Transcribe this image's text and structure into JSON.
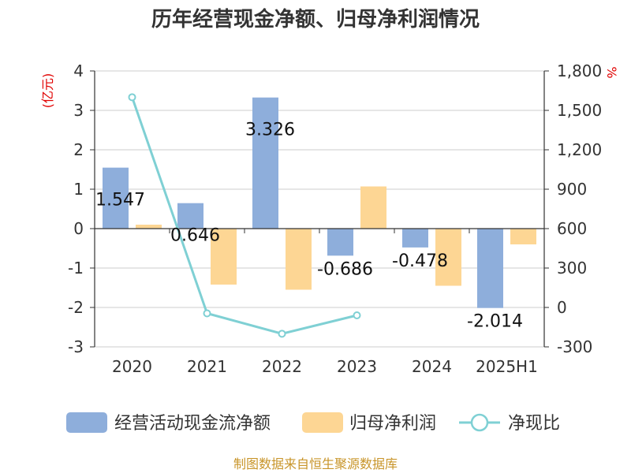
{
  "chart_data": {
    "type": "bar",
    "title": "历年经营现金净额、归母净利润情况",
    "categories": [
      "2020",
      "2021",
      "2022",
      "2023",
      "2024",
      "2025H1"
    ],
    "series": [
      {
        "name": "经营活动现金流净额",
        "kind": "bar",
        "axis": "left",
        "color": "#8eaedb",
        "values": [
          1.547,
          0.646,
          3.326,
          -0.686,
          -0.478,
          -2.014
        ],
        "labels": [
          "1.547",
          "0.646",
          "3.326",
          "-0.686",
          "-0.478",
          "-2.014"
        ]
      },
      {
        "name": "归母净利润",
        "kind": "bar",
        "axis": "left",
        "color": "#fdd694",
        "values": [
          0.1,
          -1.42,
          -1.55,
          1.07,
          -1.45,
          -0.4
        ]
      },
      {
        "name": "净现比",
        "kind": "line",
        "axis": "right",
        "color": "#7fd0d4",
        "values": [
          1600,
          -45,
          -200,
          -60,
          null,
          null
        ]
      }
    ],
    "y_left": {
      "unit": "(亿元)",
      "min": -3,
      "max": 4,
      "ticks": [
        "4",
        "3",
        "2",
        "1",
        "0",
        "-1",
        "-2",
        "-3"
      ]
    },
    "y_right": {
      "unit": "%",
      "min": -300,
      "max": 1800,
      "ticks": [
        "1,800",
        "1,500",
        "1,200",
        "900",
        "600",
        "300",
        "0",
        "-300"
      ]
    },
    "legend_position": "bottom",
    "source": "制图数据来自恒生聚源数据库"
  }
}
